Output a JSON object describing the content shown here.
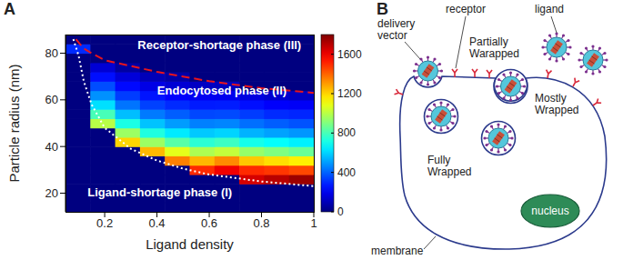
{
  "chart_data": {
    "type": "heatmap",
    "panel_label": "A",
    "x_label": "Ligand density",
    "y_label": "Particle radius (nm)",
    "xlim": [
      0.05,
      1
    ],
    "xticks": [
      0.2,
      0.4,
      0.6,
      0.8,
      1
    ],
    "ylim": [
      12,
      88
    ],
    "yticks": [
      20,
      40,
      60,
      80
    ],
    "heatmap": {
      "x": [
        0.0975,
        0.1925,
        0.2875,
        0.3825,
        0.4775,
        0.5725,
        0.6675,
        0.7625,
        0.8575,
        0.9525
      ],
      "y": [
        14,
        18,
        22,
        26,
        30,
        34,
        38,
        42,
        46,
        50,
        54,
        58,
        62,
        66,
        70,
        74,
        78,
        82,
        86
      ],
      "values": [
        [
          0,
          0,
          0,
          0,
          0,
          0,
          0,
          0,
          0,
          0
        ],
        [
          0,
          0,
          0,
          0,
          0,
          0,
          0,
          0,
          0,
          0
        ],
        [
          0,
          0,
          0,
          0,
          0,
          0,
          0,
          0,
          0,
          0
        ],
        [
          0,
          0,
          0,
          0,
          0,
          0,
          0,
          1650,
          1700,
          1750
        ],
        [
          0,
          0,
          0,
          0,
          0,
          1500,
          1600,
          1500,
          1480,
          1450
        ],
        [
          0,
          0,
          0,
          0,
          1350,
          1250,
          1330,
          1220,
          1180,
          1150
        ],
        [
          0,
          0,
          0,
          1250,
          1080,
          980,
          1020,
          940,
          900,
          860
        ],
        [
          0,
          0,
          1200,
          950,
          830,
          750,
          780,
          710,
          680,
          650
        ],
        [
          0,
          0,
          950,
          730,
          640,
          580,
          600,
          540,
          510,
          490
        ],
        [
          0,
          1000,
          720,
          570,
          500,
          450,
          460,
          420,
          390,
          370
        ],
        [
          0,
          800,
          560,
          440,
          390,
          350,
          355,
          330,
          300,
          290
        ],
        [
          0,
          620,
          430,
          340,
          300,
          270,
          275,
          250,
          220,
          210
        ],
        [
          0,
          480,
          330,
          260,
          220,
          200,
          195,
          170,
          140,
          120
        ],
        [
          0,
          360,
          240,
          180,
          150,
          120,
          110,
          0,
          0,
          0
        ],
        [
          0,
          250,
          160,
          100,
          70,
          0,
          0,
          0,
          0,
          0
        ],
        [
          0,
          150,
          60,
          0,
          0,
          0,
          0,
          0,
          0,
          0
        ],
        [
          0,
          0,
          0,
          0,
          0,
          0,
          0,
          0,
          0,
          0
        ],
        [
          300,
          0,
          0,
          0,
          0,
          0,
          0,
          0,
          0,
          0
        ],
        [
          0,
          0,
          0,
          0,
          0,
          0,
          0,
          0,
          0,
          0
        ]
      ]
    },
    "colorbar": {
      "range": [
        0,
        1800
      ],
      "ticks": [
        0,
        400,
        800,
        1200,
        1600
      ]
    },
    "lines": [
      {
        "x": [
          0.09,
          0.12,
          0.15,
          0.2,
          0.3,
          0.4,
          0.5,
          0.6,
          0.7,
          0.8,
          0.9,
          1
        ],
        "values": [
          86,
          82,
          80,
          77,
          74.5,
          72,
          70,
          68,
          66.5,
          65,
          64,
          63
        ],
        "color": "#e8141c",
        "line_style": "dashed"
      },
      {
        "x": [
          0.08,
          0.1,
          0.12,
          0.15,
          0.2,
          0.3,
          0.4,
          0.5,
          0.6,
          0.7,
          0.8,
          0.9,
          1
        ],
        "values": [
          86,
          79,
          68,
          58,
          48,
          39,
          34,
          30.5,
          28,
          26.5,
          25,
          24,
          23
        ],
        "color": "#ffffff",
        "line_style": "dotted"
      }
    ],
    "annotations": [
      "Receptor-shortage phase (III)",
      "Endocytosed phase (II)",
      "Ligand-shortage phase (I)"
    ]
  },
  "diagram": {
    "panel_label": "B",
    "labels": {
      "delivery_vector": "delivery vector",
      "receptor": "receptor",
      "ligand": "ligand",
      "partially": "Partially Warapped",
      "mostly": "Mostly Wrapped",
      "fully": "Fully Wrapped",
      "nucleus": "nucleus",
      "membrane": "membrane"
    }
  }
}
